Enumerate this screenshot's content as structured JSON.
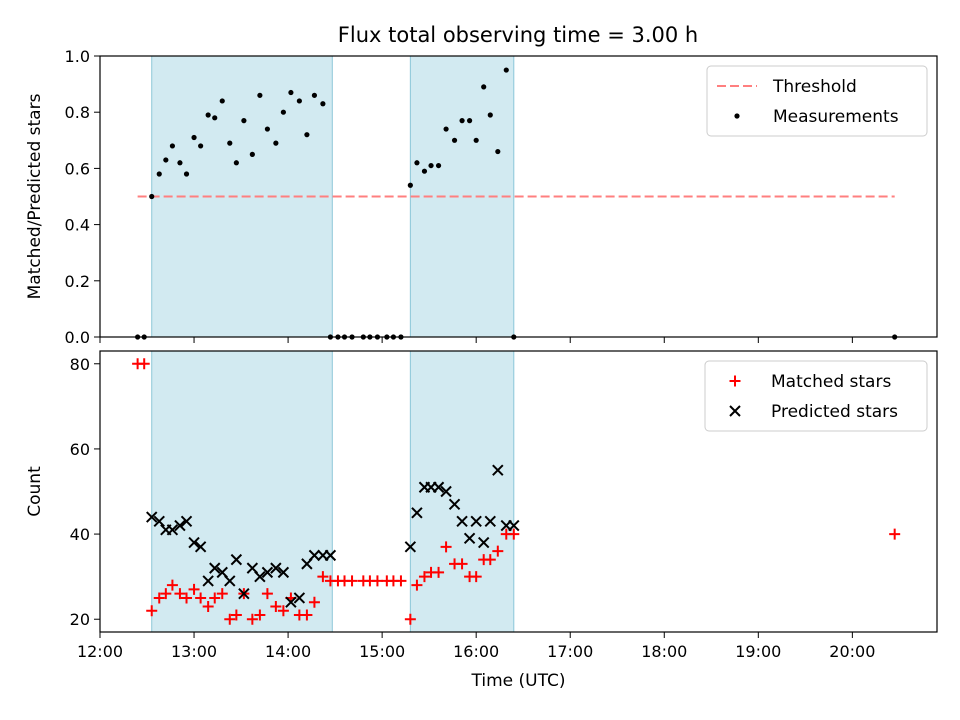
{
  "title": "Flux total observing time = 3.00 h",
  "colors": {
    "band": "#add8e6",
    "threshold": "#ff7f7f",
    "measurement": "#000000",
    "matched": "#ff0000",
    "predicted": "#000000"
  },
  "chart_data": [
    {
      "type": "scatter",
      "ylabel": "Matched/Predicted stars",
      "xlim": [
        12.0,
        20.9
      ],
      "ylim": [
        0,
        1.0
      ],
      "yticks": [
        "0.0",
        "0.2",
        "0.4",
        "0.6",
        "0.8",
        "1.0"
      ],
      "ytick_values": [
        0,
        0.2,
        0.4,
        0.6,
        0.8,
        1.0
      ],
      "legend": {
        "placement": "top-right",
        "entries": [
          "Threshold",
          "Measurements"
        ]
      },
      "observing_windows": [
        [
          12.55,
          14.47
        ],
        [
          15.3,
          16.4
        ]
      ],
      "threshold": {
        "name": "Threshold",
        "value": 0.5,
        "x_range": [
          12.4,
          20.45
        ]
      },
      "series": [
        {
          "name": "Measurements",
          "x": [
            12.4,
            12.47,
            12.55,
            12.63,
            12.7,
            12.77,
            12.85,
            12.92,
            13.0,
            13.07,
            13.15,
            13.22,
            13.3,
            13.38,
            13.45,
            13.53,
            13.62,
            13.7,
            13.78,
            13.87,
            13.95,
            14.03,
            14.12,
            14.2,
            14.28,
            14.37,
            14.45,
            14.53,
            14.6,
            14.68,
            14.8,
            14.87,
            14.95,
            15.05,
            15.12,
            15.2,
            15.3,
            15.37,
            15.45,
            15.52,
            15.6,
            15.68,
            15.77,
            15.85,
            15.93,
            16.0,
            16.08,
            16.15,
            16.23,
            16.32,
            16.4,
            20.45
          ],
          "y": [
            0,
            0,
            0.5,
            0.58,
            0.63,
            0.68,
            0.62,
            0.58,
            0.71,
            0.68,
            0.79,
            0.78,
            0.84,
            0.69,
            0.62,
            0.77,
            0.65,
            0.86,
            0.74,
            0.69,
            0.8,
            0.87,
            0.84,
            0.72,
            0.86,
            0.83,
            0,
            0,
            0,
            0,
            0,
            0,
            0,
            0,
            0,
            0,
            0.54,
            0.62,
            0.59,
            0.61,
            0.61,
            0.74,
            0.7,
            0.77,
            0.77,
            0.7,
            0.89,
            0.79,
            0.66,
            0.95,
            0,
            0
          ]
        }
      ]
    },
    {
      "type": "scatter",
      "xlabel": "Time (UTC)",
      "ylabel": "Count",
      "xlim": [
        12.0,
        20.9
      ],
      "ylim": [
        17,
        83
      ],
      "xticks": [
        "12:00",
        "13:00",
        "14:00",
        "15:00",
        "16:00",
        "17:00",
        "18:00",
        "19:00",
        "20:00"
      ],
      "xtick_values": [
        12,
        13,
        14,
        15,
        16,
        17,
        18,
        19,
        20
      ],
      "yticks": [
        "20",
        "40",
        "60",
        "80"
      ],
      "ytick_values": [
        20,
        40,
        60,
        80
      ],
      "legend": {
        "placement": "top-right",
        "entries": [
          "Matched stars",
          "Predicted stars"
        ]
      },
      "observing_windows": [
        [
          12.55,
          14.47
        ],
        [
          15.3,
          16.4
        ]
      ],
      "series": [
        {
          "name": "Matched stars",
          "marker": "+",
          "x": [
            12.4,
            12.47,
            12.55,
            12.63,
            12.7,
            12.77,
            12.85,
            12.92,
            13.0,
            13.07,
            13.15,
            13.22,
            13.3,
            13.38,
            13.45,
            13.53,
            13.62,
            13.7,
            13.78,
            13.87,
            13.95,
            14.03,
            14.12,
            14.2,
            14.28,
            14.37,
            14.45,
            14.53,
            14.6,
            14.68,
            14.8,
            14.87,
            14.95,
            15.05,
            15.12,
            15.2,
            15.3,
            15.37,
            15.45,
            15.52,
            15.6,
            15.68,
            15.77,
            15.85,
            15.93,
            16.0,
            16.08,
            16.15,
            16.23,
            16.32,
            16.4,
            20.45
          ],
          "y": [
            80,
            80,
            22,
            25,
            26,
            28,
            26,
            25,
            27,
            25,
            23,
            25,
            26,
            20,
            21,
            26,
            20,
            21,
            26,
            23,
            22,
            25,
            21,
            21,
            24,
            30,
            29,
            29,
            29,
            29,
            29,
            29,
            29,
            29,
            29,
            29,
            20,
            28,
            30,
            31,
            31,
            37,
            33,
            33,
            30,
            30,
            34,
            34,
            36,
            40,
            40,
            40
          ]
        },
        {
          "name": "Predicted stars",
          "marker": "x",
          "x": [
            12.55,
            12.63,
            12.7,
            12.77,
            12.85,
            12.92,
            13.0,
            13.07,
            13.15,
            13.22,
            13.3,
            13.38,
            13.45,
            13.53,
            13.62,
            13.7,
            13.78,
            13.87,
            13.95,
            14.03,
            14.12,
            14.2,
            14.28,
            14.37,
            14.45,
            15.3,
            15.37,
            15.45,
            15.52,
            15.6,
            15.68,
            15.77,
            15.85,
            15.93,
            16.0,
            16.08,
            16.15,
            16.23,
            16.32,
            16.4
          ],
          "y": [
            44,
            43,
            41,
            41,
            42,
            43,
            38,
            37,
            29,
            32,
            31,
            29,
            34,
            26,
            32,
            30,
            31,
            32,
            31,
            24,
            25,
            33,
            35,
            35,
            35,
            37,
            45,
            51,
            51,
            51,
            50,
            47,
            43,
            39,
            43,
            38,
            43,
            55,
            42,
            42
          ]
        }
      ]
    }
  ]
}
